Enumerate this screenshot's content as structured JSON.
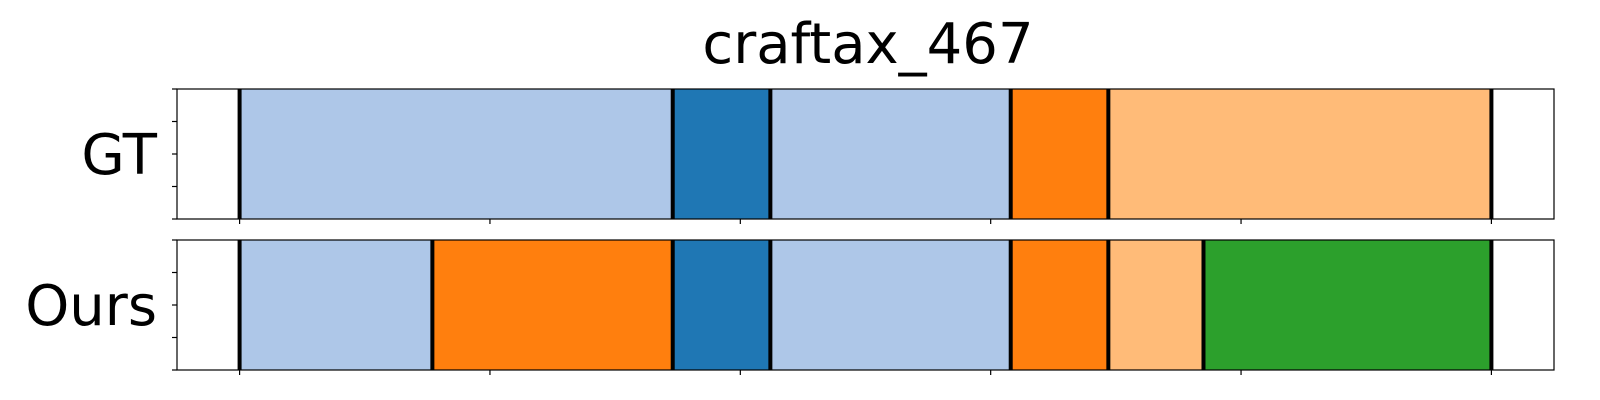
{
  "chart_data": {
    "type": "bar",
    "title": "craftax_467",
    "xlim": [
      -25,
      525
    ],
    "x_ticks": [
      0,
      100,
      200,
      300,
      400,
      500
    ],
    "y_ticks": [
      0,
      0.25,
      0.5,
      0.75,
      1
    ],
    "rows": [
      {
        "name": "GT",
        "segments": [
          {
            "start": 0,
            "end": 173,
            "color": "#aec7e8"
          },
          {
            "start": 173,
            "end": 212,
            "color": "#1f77b4"
          },
          {
            "start": 212,
            "end": 308,
            "color": "#aec7e8"
          },
          {
            "start": 308,
            "end": 347,
            "color": "#ff7f0e"
          },
          {
            "start": 347,
            "end": 500,
            "color": "#ffbb78"
          }
        ],
        "boundaries": [
          0,
          173,
          212,
          308,
          347,
          500
        ]
      },
      {
        "name": "Ours",
        "segments": [
          {
            "start": 0,
            "end": 77,
            "color": "#aec7e8"
          },
          {
            "start": 77,
            "end": 173,
            "color": "#ff7f0e"
          },
          {
            "start": 173,
            "end": 212,
            "color": "#1f77b4"
          },
          {
            "start": 212,
            "end": 308,
            "color": "#aec7e8"
          },
          {
            "start": 308,
            "end": 347,
            "color": "#ff7f0e"
          },
          {
            "start": 347,
            "end": 385,
            "color": "#ffbb78"
          },
          {
            "start": 385,
            "end": 500,
            "color": "#2ca02c"
          }
        ],
        "boundaries": [
          0,
          77,
          173,
          212,
          308,
          347,
          385,
          500
        ]
      }
    ]
  }
}
